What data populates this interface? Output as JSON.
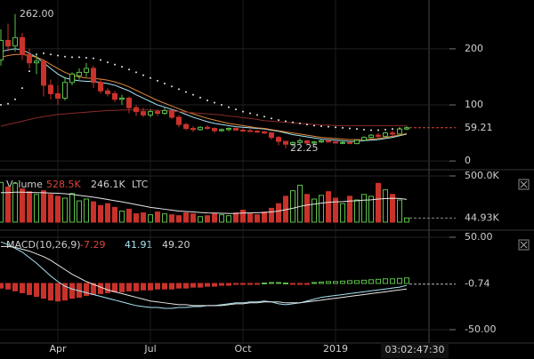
{
  "chart_data": [
    {
      "type": "candlestick",
      "categories": [
        null,
        null,
        null,
        null,
        null,
        null,
        null,
        null,
        "Apr",
        null,
        null,
        null,
        null,
        null,
        null,
        null,
        null,
        null,
        null,
        null,
        null,
        "Jul",
        null,
        null,
        null,
        null,
        null,
        null,
        null,
        null,
        null,
        null,
        null,
        null,
        "Oct",
        null,
        null,
        null,
        null,
        null,
        null,
        null,
        null,
        null,
        null,
        null,
        null,
        "2019",
        null,
        null,
        null,
        null,
        null,
        null,
        null,
        null,
        null,
        null
      ],
      "open": [
        180,
        215,
        205,
        220,
        190,
        175,
        178,
        135,
        120,
        112,
        140,
        152,
        158,
        165,
        140,
        125,
        120,
        110,
        112,
        95,
        88,
        82,
        88,
        85,
        90,
        78,
        65,
        58,
        56,
        60,
        58,
        54,
        56,
        58,
        55,
        54,
        53,
        52,
        50,
        42,
        35,
        30,
        33,
        36,
        32,
        34,
        36,
        34,
        32,
        33,
        31,
        37,
        42,
        46,
        44,
        50,
        48,
        57
      ],
      "high": [
        235,
        245,
        262,
        228,
        200,
        190,
        180,
        145,
        135,
        150,
        158,
        165,
        175,
        170,
        145,
        130,
        125,
        118,
        115,
        100,
        95,
        92,
        92,
        95,
        92,
        82,
        68,
        62,
        62,
        64,
        60,
        58,
        60,
        60,
        58,
        57,
        56,
        54,
        52,
        45,
        36,
        35,
        40,
        37,
        36,
        38,
        38,
        37,
        36,
        35,
        38,
        44,
        48,
        50,
        52,
        54,
        60,
        62
      ],
      "low": [
        170,
        195,
        195,
        180,
        165,
        155,
        115,
        110,
        100,
        108,
        135,
        145,
        150,
        130,
        120,
        115,
        105,
        100,
        85,
        80,
        78,
        78,
        80,
        82,
        75,
        60,
        55,
        52,
        54,
        56,
        50,
        52,
        53,
        54,
        52,
        52,
        50,
        48,
        38,
        28,
        22.25,
        26,
        30,
        30,
        30,
        32,
        33,
        31,
        30,
        30,
        30,
        35,
        40,
        41,
        43,
        45,
        47,
        55
      ],
      "close": [
        215,
        205,
        220,
        190,
        175,
        178,
        135,
        120,
        112,
        140,
        155,
        158,
        165,
        140,
        125,
        120,
        110,
        112,
        95,
        88,
        82,
        88,
        85,
        90,
        78,
        65,
        58,
        56,
        60,
        58,
        54,
        56,
        58,
        55,
        54,
        53,
        52,
        50,
        42,
        35,
        30,
        33,
        36,
        32,
        34,
        36,
        34,
        32,
        33,
        31,
        37,
        42,
        46,
        44,
        50,
        48,
        57,
        59.21
      ],
      "up_color": "#5cbf4a",
      "down_color": "#c9322a",
      "overlays": [
        {
          "color": "#a8e4f2",
          "dotted": false,
          "values": [
            195,
            198,
            200,
            198,
            192,
            185,
            175,
            165,
            155,
            148,
            145,
            143,
            142,
            142,
            140,
            138,
            135,
            130,
            125,
            118,
            112,
            106,
            100,
            96,
            92,
            88,
            83,
            78,
            74,
            70,
            67,
            65,
            63,
            61,
            60,
            59,
            58,
            57,
            55,
            53,
            50,
            47,
            45,
            43,
            41,
            39,
            38,
            37,
            36,
            35,
            35,
            36,
            37,
            38,
            40,
            42,
            45,
            48
          ]
        },
        {
          "color": "#e0883a",
          "dotted": false,
          "values": [
            185,
            188,
            190,
            190,
            188,
            185,
            180,
            172,
            165,
            158,
            153,
            150,
            148,
            147,
            146,
            144,
            141,
            137,
            132,
            126,
            120,
            114,
            108,
            103,
            98,
            93,
            88,
            84,
            80,
            76,
            73,
            70,
            67,
            65,
            63,
            61,
            59,
            58,
            56,
            54,
            52,
            50,
            48,
            46,
            44,
            42,
            41,
            40,
            39,
            38,
            38,
            38,
            39,
            40,
            42,
            44,
            46,
            49
          ]
        },
        {
          "color": "#8a2a2a",
          "dotted": false,
          "values": [
            62,
            65,
            68,
            71,
            74,
            77,
            79,
            81,
            83,
            84,
            85,
            86,
            87,
            88,
            89,
            90,
            90,
            91,
            91,
            91,
            91,
            91,
            90,
            90,
            89,
            88,
            87,
            86,
            85,
            84,
            83,
            82,
            80,
            79,
            77,
            76,
            74,
            72,
            71,
            70,
            69,
            68,
            67,
            66,
            65,
            64,
            64,
            63,
            63,
            63,
            63,
            63,
            63,
            63,
            63,
            63,
            63,
            63
          ]
        },
        {
          "color": "#e6e6e6",
          "dotted": true,
          "values": [
            100,
            102,
            110,
            130,
            160,
            190,
            192,
            190,
            188,
            186,
            185,
            185,
            184,
            183,
            180,
            176,
            172,
            168,
            163,
            158,
            153,
            148,
            143,
            138,
            133,
            128,
            123,
            118,
            113,
            108,
            104,
            100,
            96,
            92,
            88,
            85,
            82,
            79,
            76,
            73,
            71,
            69,
            67,
            65,
            63,
            62,
            61,
            60,
            59,
            58,
            57,
            56,
            55,
            55,
            56,
            57,
            58,
            59
          ]
        }
      ],
      "annotations": [
        {
          "label": "262.00",
          "value": 262
        },
        {
          "label": "22.25",
          "value": 22.25
        }
      ],
      "ylim": [
        -14,
        287
      ],
      "yticks": [
        0,
        100,
        200
      ],
      "grid": true
    },
    {
      "type": "bar",
      "label": "Volume",
      "legend_values": [
        "528.5K",
        "246.1K"
      ],
      "symbol": "LTC",
      "values": [
        430000,
        380000,
        420000,
        360000,
        330000,
        300000,
        340000,
        300000,
        280000,
        260000,
        310000,
        230000,
        250000,
        220000,
        180000,
        200000,
        160000,
        120000,
        140000,
        90000,
        100000,
        80000,
        110000,
        90000,
        80000,
        70000,
        100000,
        90000,
        60000,
        70000,
        90000,
        80000,
        70000,
        100000,
        130000,
        90000,
        80000,
        110000,
        150000,
        200000,
        280000,
        340000,
        400000,
        300000,
        250000,
        290000,
        330000,
        260000,
        200000,
        280000,
        240000,
        300000,
        280000,
        420000,
        350000,
        300000,
        240000,
        44930
      ],
      "value_labels": [
        null,
        null,
        null,
        null,
        null,
        null,
        null,
        null,
        null,
        null,
        null,
        null,
        null,
        null,
        null,
        null,
        null,
        null,
        null,
        null,
        null,
        null,
        null,
        null,
        null,
        null,
        null,
        null,
        null,
        null,
        null,
        null,
        null,
        null,
        null,
        null,
        null,
        null,
        null,
        null,
        null,
        null,
        null,
        null,
        null,
        null,
        null,
        null,
        null,
        null,
        null,
        null,
        null,
        null,
        null,
        null,
        null,
        "44.93K"
      ],
      "ma": [
        320000,
        320000,
        325000,
        325000,
        322000,
        320000,
        318000,
        315000,
        312000,
        308000,
        300000,
        290000,
        280000,
        270000,
        258000,
        245000,
        232000,
        220000,
        205000,
        190000,
        175000,
        160000,
        150000,
        140000,
        130000,
        120000,
        115000,
        110000,
        105000,
        100000,
        98000,
        96000,
        94000,
        95000,
        98000,
        100000,
        102000,
        105000,
        110000,
        120000,
        135000,
        150000,
        170000,
        185000,
        195000,
        205000,
        215000,
        220000,
        222000,
        228000,
        232000,
        238000,
        242000,
        250000,
        255000,
        258000,
        256000,
        246100
      ],
      "ylim": [
        0,
        548000
      ],
      "yticks": [
        {
          "value": 500000,
          "label": "500.0K"
        }
      ]
    },
    {
      "type": "macd",
      "label": "MACD(10,26,9)",
      "legend_values": [
        "-7.29",
        "41.91",
        "49.20"
      ],
      "histogram": [
        -5,
        -6,
        -8,
        -10,
        -12,
        -14,
        -16,
        -18,
        -19,
        -18,
        -16,
        -15,
        -13,
        -12,
        -11,
        -10,
        -9,
        -9,
        -8,
        -8,
        -7,
        -7,
        -6,
        -6,
        -6,
        -5,
        -5,
        -4,
        -4,
        -3,
        -3,
        -2,
        -2,
        -1,
        -1,
        -1,
        -0.5,
        0.5,
        1,
        1,
        0.5,
        -0.5,
        -1,
        -1,
        1,
        1.5,
        2,
        2,
        2.5,
        3,
        3,
        3.5,
        4,
        4.5,
        5,
        5,
        5.5,
        6
      ],
      "macd": [
        45,
        42,
        38,
        34,
        28,
        22,
        15,
        8,
        2,
        -3,
        -6,
        -8,
        -10,
        -12,
        -14,
        -16,
        -18,
        -20,
        -22,
        -24,
        -25,
        -26,
        -26,
        -27,
        -27,
        -26,
        -26,
        -25,
        -25,
        -24,
        -24,
        -23,
        -22,
        -21,
        -21,
        -20,
        -20,
        -19,
        -20,
        -22,
        -23,
        -22,
        -21,
        -19,
        -17,
        -15,
        -14,
        -13,
        -12,
        -11,
        -10,
        -9,
        -8,
        -7,
        -6,
        -5,
        -4,
        -2
      ],
      "signal": [
        40,
        40,
        39,
        37,
        35,
        32,
        29,
        25,
        20,
        15,
        10,
        6,
        2,
        -1,
        -4,
        -7,
        -9,
        -11,
        -13,
        -15,
        -17,
        -19,
        -20,
        -21,
        -22,
        -23,
        -23,
        -24,
        -24,
        -24,
        -24,
        -24,
        -23,
        -22,
        -22,
        -21,
        -21,
        -20,
        -20,
        -20,
        -21,
        -21,
        -21,
        -20,
        -19,
        -18,
        -17,
        -16,
        -15,
        -14,
        -13,
        -12,
        -11,
        -10,
        -9,
        -8,
        -7,
        -6
      ],
      "current": -0.74,
      "ylim": [
        -63.5,
        54.8
      ],
      "yticks": [
        {
          "value": 50,
          "label": "50.00"
        },
        {
          "value": -50,
          "label": "-50.00"
        }
      ]
    }
  ],
  "countdown": "03:02:47:30"
}
